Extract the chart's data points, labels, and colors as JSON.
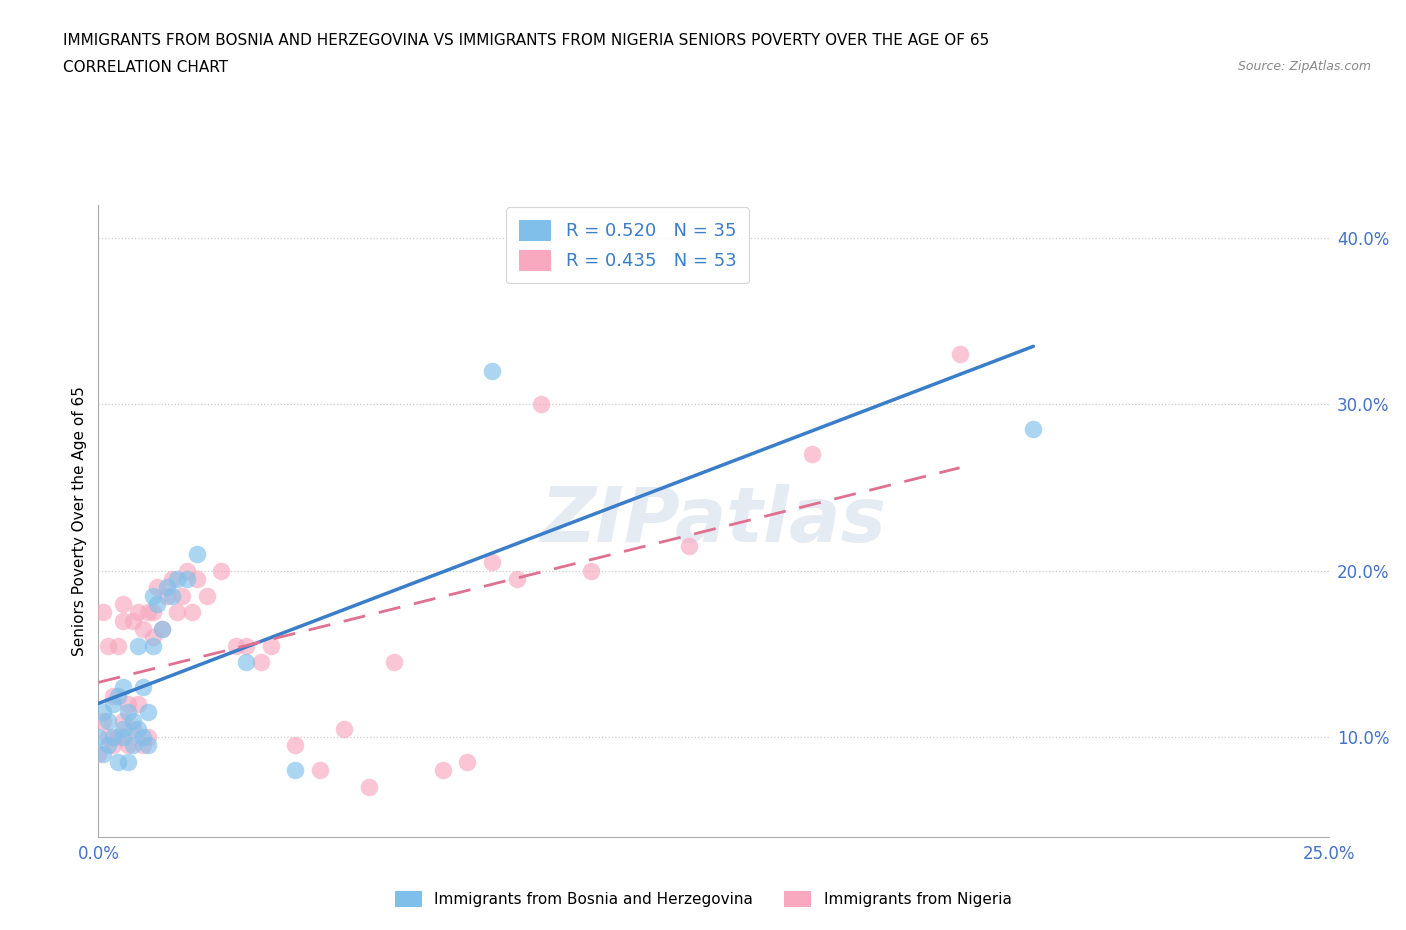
{
  "title_line1": "IMMIGRANTS FROM BOSNIA AND HERZEGOVINA VS IMMIGRANTS FROM NIGERIA SENIORS POVERTY OVER THE AGE OF 65",
  "title_line2": "CORRELATION CHART",
  "source_text": "Source: ZipAtlas.com",
  "ylabel": "Seniors Poverty Over the Age of 65",
  "xlim": [
    0.0,
    0.25
  ],
  "ylim": [
    0.04,
    0.42
  ],
  "yticks": [
    0.1,
    0.2,
    0.3,
    0.4
  ],
  "ytick_labels": [
    "10.0%",
    "20.0%",
    "30.0%",
    "40.0%"
  ],
  "xticks": [
    0.0,
    0.05,
    0.1,
    0.15,
    0.2,
    0.25
  ],
  "xtick_labels": [
    "0.0%",
    "",
    "",
    "",
    "",
    "25.0%"
  ],
  "r_bosnia": 0.52,
  "n_bosnia": 35,
  "r_nigeria": 0.435,
  "n_nigeria": 53,
  "color_bosnia": "#7fbfea",
  "color_nigeria": "#f8a8bf",
  "line_color_bosnia": "#3a7dc9",
  "line_color_nigeria": "#e07090",
  "watermark": "ZIPatlas",
  "bosnia_intercept": 0.092,
  "bosnia_slope": 1.0,
  "nigeria_intercept": 0.118,
  "nigeria_slope": 0.84,
  "bosnia_x": [
    0.0,
    0.001,
    0.001,
    0.002,
    0.002,
    0.003,
    0.003,
    0.004,
    0.004,
    0.005,
    0.005,
    0.005,
    0.006,
    0.006,
    0.007,
    0.007,
    0.008,
    0.008,
    0.009,
    0.009,
    0.01,
    0.01,
    0.011,
    0.011,
    0.012,
    0.013,
    0.014,
    0.015,
    0.016,
    0.018,
    0.02,
    0.03,
    0.04,
    0.08,
    0.19
  ],
  "bosnia_y": [
    0.1,
    0.115,
    0.09,
    0.11,
    0.095,
    0.12,
    0.1,
    0.125,
    0.085,
    0.105,
    0.1,
    0.13,
    0.115,
    0.085,
    0.11,
    0.095,
    0.155,
    0.105,
    0.13,
    0.1,
    0.115,
    0.095,
    0.155,
    0.185,
    0.18,
    0.165,
    0.19,
    0.185,
    0.195,
    0.195,
    0.21,
    0.145,
    0.08,
    0.32,
    0.285
  ],
  "nigeria_x": [
    0.0,
    0.001,
    0.001,
    0.002,
    0.002,
    0.003,
    0.003,
    0.004,
    0.004,
    0.005,
    0.005,
    0.005,
    0.006,
    0.006,
    0.007,
    0.007,
    0.008,
    0.008,
    0.009,
    0.009,
    0.01,
    0.01,
    0.011,
    0.011,
    0.012,
    0.013,
    0.014,
    0.015,
    0.016,
    0.017,
    0.018,
    0.019,
    0.02,
    0.022,
    0.025,
    0.028,
    0.03,
    0.033,
    0.035,
    0.04,
    0.045,
    0.05,
    0.055,
    0.06,
    0.07,
    0.075,
    0.08,
    0.085,
    0.09,
    0.1,
    0.12,
    0.145,
    0.175
  ],
  "nigeria_y": [
    0.09,
    0.11,
    0.175,
    0.1,
    0.155,
    0.125,
    0.095,
    0.155,
    0.1,
    0.17,
    0.11,
    0.18,
    0.12,
    0.095,
    0.17,
    0.105,
    0.175,
    0.12,
    0.165,
    0.095,
    0.175,
    0.1,
    0.16,
    0.175,
    0.19,
    0.165,
    0.185,
    0.195,
    0.175,
    0.185,
    0.2,
    0.175,
    0.195,
    0.185,
    0.2,
    0.155,
    0.155,
    0.145,
    0.155,
    0.095,
    0.08,
    0.105,
    0.07,
    0.145,
    0.08,
    0.085,
    0.205,
    0.195,
    0.3,
    0.2,
    0.215,
    0.27,
    0.33
  ]
}
